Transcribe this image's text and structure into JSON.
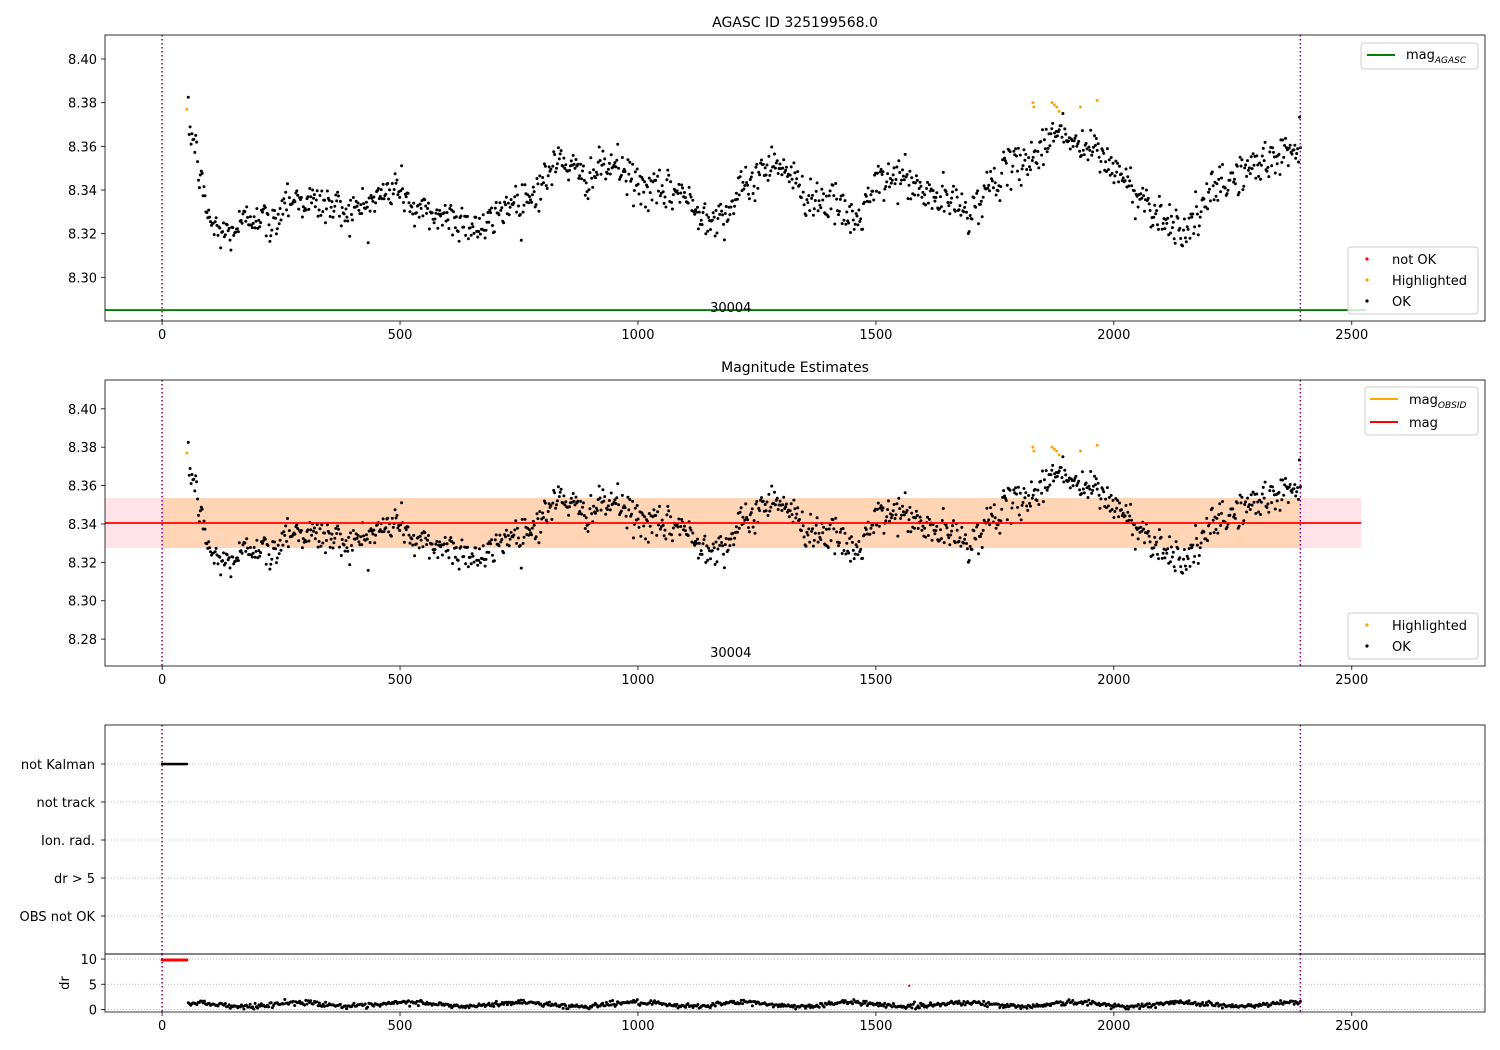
{
  "figure": {
    "width": 1500,
    "height": 1050
  },
  "chart_data": [
    {
      "type": "scatter",
      "title": "AGASC ID 325199568.0",
      "xlim": [
        -120,
        2780
      ],
      "ylim": [
        8.28,
        8.411
      ],
      "x_ticks": [
        0,
        500,
        1000,
        1500,
        2000,
        2500
      ],
      "y_ticks": [
        8.3,
        8.32,
        8.34,
        8.36,
        8.38,
        8.4
      ],
      "y_tick_labels": [
        "8.30",
        "8.32",
        "8.34",
        "8.36",
        "8.38",
        "8.40"
      ],
      "x_tick_labels": [
        "0",
        "500",
        "1000",
        "1500",
        "2000",
        "2500"
      ],
      "vlines": [
        0,
        2392
      ],
      "obsid_label": "30004",
      "obsid_label_x": 1195,
      "hlines": [
        {
          "name": "mag_AGASC",
          "y": 8.285,
          "x_range": [
            -120,
            2530
          ],
          "color": "#008000"
        }
      ],
      "legend_lines": [
        {
          "main": "mag",
          "sub": "AGASC",
          "color": "#008000"
        }
      ],
      "legend_points": [
        {
          "label": "not OK",
          "color": "#ff0000"
        },
        {
          "label": "Highlighted",
          "color": "#ffa500"
        },
        {
          "label": "OK",
          "color": "#000000"
        }
      ],
      "highlighted_points": [
        [
          52,
          8.377
        ],
        [
          1830,
          8.38
        ],
        [
          1832,
          8.378
        ],
        [
          1870,
          8.38
        ],
        [
          1875,
          8.379
        ],
        [
          1880,
          8.378
        ],
        [
          1885,
          8.376
        ],
        [
          1930,
          8.378
        ],
        [
          1965,
          8.381
        ]
      ],
      "series_ok": {
        "n": 1200,
        "x_range": [
          55,
          2392
        ],
        "anchors": [
          [
            55,
            8.37
          ],
          [
            70,
            8.36
          ],
          [
            80,
            8.345
          ],
          [
            95,
            8.33
          ],
          [
            110,
            8.322
          ],
          [
            140,
            8.32
          ],
          [
            200,
            8.33
          ],
          [
            230,
            8.322
          ],
          [
            260,
            8.337
          ],
          [
            300,
            8.335
          ],
          [
            350,
            8.333
          ],
          [
            400,
            8.33
          ],
          [
            450,
            8.336
          ],
          [
            500,
            8.342
          ],
          [
            530,
            8.33
          ],
          [
            600,
            8.328
          ],
          [
            680,
            8.322
          ],
          [
            720,
            8.333
          ],
          [
            780,
            8.338
          ],
          [
            840,
            8.355
          ],
          [
            880,
            8.345
          ],
          [
            950,
            8.352
          ],
          [
            1000,
            8.342
          ],
          [
            1050,
            8.338
          ],
          [
            1090,
            8.34
          ],
          [
            1120,
            8.33
          ],
          [
            1180,
            8.328
          ],
          [
            1220,
            8.34
          ],
          [
            1290,
            8.355
          ],
          [
            1350,
            8.338
          ],
          [
            1400,
            8.335
          ],
          [
            1460,
            8.325
          ],
          [
            1500,
            8.342
          ],
          [
            1550,
            8.347
          ],
          [
            1600,
            8.338
          ],
          [
            1650,
            8.335
          ],
          [
            1700,
            8.33
          ],
          [
            1750,
            8.345
          ],
          [
            1800,
            8.352
          ],
          [
            1850,
            8.358
          ],
          [
            1880,
            8.37
          ],
          [
            1920,
            8.36
          ],
          [
            1960,
            8.358
          ],
          [
            2000,
            8.35
          ],
          [
            2050,
            8.338
          ],
          [
            2090,
            8.33
          ],
          [
            2140,
            8.322
          ],
          [
            2170,
            8.325
          ],
          [
            2210,
            8.34
          ],
          [
            2260,
            8.347
          ],
          [
            2320,
            8.353
          ],
          [
            2392,
            8.36
          ]
        ]
      }
    },
    {
      "type": "scatter",
      "title": "Magnitude Estimates",
      "xlim": [
        -120,
        2780
      ],
      "ylim": [
        8.266,
        8.415
      ],
      "x_ticks": [
        0,
        500,
        1000,
        1500,
        2000,
        2500
      ],
      "y_ticks": [
        8.28,
        8.3,
        8.32,
        8.34,
        8.36,
        8.38,
        8.4
      ],
      "y_tick_labels": [
        "8.28",
        "8.30",
        "8.32",
        "8.34",
        "8.36",
        "8.38",
        "8.40"
      ],
      "x_tick_labels": [
        "0",
        "500",
        "1000",
        "1500",
        "2000",
        "2500"
      ],
      "vlines": [
        0,
        2392
      ],
      "obsid_label": "30004",
      "obsid_label_x": 1195,
      "mag_line": {
        "y": 8.3405,
        "x_range": [
          -120,
          2520
        ],
        "color": "#ff0000"
      },
      "mag_band": {
        "y_range": [
          8.3275,
          8.3535
        ],
        "x_range": [
          -120,
          2520
        ],
        "color": "#ffc0cb"
      },
      "obsid_band": {
        "y_range": [
          8.3275,
          8.3535
        ],
        "x_range": [
          0,
          2392
        ],
        "color": "#ffa500"
      },
      "legend_lines": [
        {
          "main": "mag",
          "sub": "OBSID",
          "color": "#ffa500"
        },
        {
          "main": "mag",
          "sub": "",
          "color": "#ff0000"
        }
      ],
      "legend_points": [
        {
          "label": "Highlighted",
          "color": "#ffa500"
        },
        {
          "label": "OK",
          "color": "#000000"
        }
      ],
      "highlighted_points": [
        [
          52,
          8.377
        ],
        [
          1830,
          8.38
        ],
        [
          1832,
          8.378
        ],
        [
          1870,
          8.38
        ],
        [
          1875,
          8.379
        ],
        [
          1880,
          8.378
        ],
        [
          1885,
          8.376
        ],
        [
          1930,
          8.378
        ],
        [
          1965,
          8.381
        ]
      ],
      "series_ok": {
        "n": 1200,
        "x_range": [
          55,
          2392
        ],
        "anchors": [
          [
            55,
            8.37
          ],
          [
            70,
            8.36
          ],
          [
            80,
            8.345
          ],
          [
            95,
            8.33
          ],
          [
            110,
            8.322
          ],
          [
            140,
            8.32
          ],
          [
            200,
            8.33
          ],
          [
            230,
            8.322
          ],
          [
            260,
            8.337
          ],
          [
            300,
            8.335
          ],
          [
            350,
            8.333
          ],
          [
            400,
            8.33
          ],
          [
            450,
            8.336
          ],
          [
            500,
            8.342
          ],
          [
            530,
            8.33
          ],
          [
            600,
            8.328
          ],
          [
            680,
            8.322
          ],
          [
            720,
            8.333
          ],
          [
            780,
            8.338
          ],
          [
            840,
            8.355
          ],
          [
            880,
            8.345
          ],
          [
            950,
            8.352
          ],
          [
            1000,
            8.342
          ],
          [
            1050,
            8.338
          ],
          [
            1090,
            8.34
          ],
          [
            1120,
            8.33
          ],
          [
            1180,
            8.328
          ],
          [
            1220,
            8.34
          ],
          [
            1290,
            8.355
          ],
          [
            1350,
            8.338
          ],
          [
            1400,
            8.335
          ],
          [
            1460,
            8.325
          ],
          [
            1500,
            8.342
          ],
          [
            1550,
            8.347
          ],
          [
            1600,
            8.338
          ],
          [
            1650,
            8.335
          ],
          [
            1700,
            8.33
          ],
          [
            1750,
            8.345
          ],
          [
            1800,
            8.352
          ],
          [
            1850,
            8.358
          ],
          [
            1880,
            8.37
          ],
          [
            1920,
            8.36
          ],
          [
            1960,
            8.358
          ],
          [
            2000,
            8.35
          ],
          [
            2050,
            8.338
          ],
          [
            2090,
            8.33
          ],
          [
            2140,
            8.322
          ],
          [
            2170,
            8.325
          ],
          [
            2210,
            8.34
          ],
          [
            2260,
            8.347
          ],
          [
            2320,
            8.353
          ],
          [
            2392,
            8.36
          ]
        ]
      }
    },
    {
      "type": "scatter",
      "title": "",
      "xlim": [
        -120,
        2780
      ],
      "category_labels": [
        "not Kalman",
        "not track",
        "Ion. rad.",
        "dr > 5",
        "OBS not OK"
      ],
      "vlines": [
        0,
        2392
      ],
      "flag_points": {
        "category": "not Kalman",
        "x_range": [
          0,
          52
        ],
        "n": 25
      }
    },
    {
      "type": "scatter",
      "title": "",
      "ylabel": "dr",
      "xlim": [
        -120,
        2780
      ],
      "ylim": [
        -0.5,
        11
      ],
      "y_ticks": [
        0,
        5,
        10
      ],
      "y_tick_labels": [
        "0",
        "5",
        "10"
      ],
      "x_ticks": [
        0,
        500,
        1000,
        1500,
        2000,
        2500
      ],
      "x_tick_labels": [
        "0",
        "500",
        "1000",
        "1500",
        "2000",
        "2500"
      ],
      "vlines": [
        0,
        2392
      ],
      "not_ok_points": {
        "y": 9.8,
        "x_range": [
          0,
          52
        ],
        "n": 25
      },
      "outlier_point": [
        1570,
        4.7
      ],
      "series_ok": {
        "n": 900,
        "x_range": [
          55,
          2392
        ],
        "mean": 1.0
      }
    }
  ]
}
